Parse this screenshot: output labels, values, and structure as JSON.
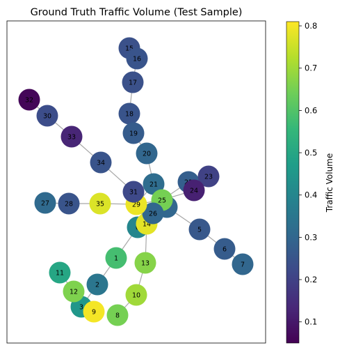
{
  "title": "Ground Truth Traffic Volume (Test Sample)",
  "colorbar": {
    "label": "Traffic Volume",
    "ticks": [
      "0.1",
      "0.2",
      "0.3",
      "0.4",
      "0.5",
      "0.6",
      "0.7",
      "0.8"
    ],
    "tick_values": [
      0.1,
      0.2,
      0.3,
      0.4,
      0.5,
      0.6,
      0.7,
      0.8
    ],
    "vmin": 0.05,
    "vmax": 0.81,
    "colormap": "viridis",
    "colors": [
      "#440154",
      "#482878",
      "#3e4989",
      "#31688e",
      "#26828e",
      "#1f9e89",
      "#35b779",
      "#6ece58",
      "#b5de2b",
      "#fde725"
    ]
  },
  "chart_data": {
    "type": "network-graph",
    "title": "Ground Truth Traffic Volume (Test Sample)",
    "nodes": [
      {
        "id": "0",
        "value": 0.4
      },
      {
        "id": "1",
        "value": 0.58
      },
      {
        "id": "2",
        "value": 0.35
      },
      {
        "id": "3",
        "value": 0.45
      },
      {
        "id": "4",
        "value": 0.3
      },
      {
        "id": "5",
        "value": 0.26
      },
      {
        "id": "6",
        "value": 0.27
      },
      {
        "id": "7",
        "value": 0.3
      },
      {
        "id": "8",
        "value": 0.65
      },
      {
        "id": "9",
        "value": 0.8
      },
      {
        "id": "10",
        "value": 0.7
      },
      {
        "id": "11",
        "value": 0.5
      },
      {
        "id": "12",
        "value": 0.66
      },
      {
        "id": "13",
        "value": 0.67
      },
      {
        "id": "14",
        "value": 0.78
      },
      {
        "id": "15",
        "value": 0.24
      },
      {
        "id": "16",
        "value": 0.25
      },
      {
        "id": "17",
        "value": 0.24
      },
      {
        "id": "18",
        "value": 0.25
      },
      {
        "id": "19",
        "value": 0.27
      },
      {
        "id": "20",
        "value": 0.3
      },
      {
        "id": "21",
        "value": 0.32
      },
      {
        "id": "22",
        "value": 0.28
      },
      {
        "id": "23",
        "value": 0.2
      },
      {
        "id": "24",
        "value": 0.12
      },
      {
        "id": "25",
        "value": 0.65
      },
      {
        "id": "26",
        "value": 0.3
      },
      {
        "id": "27",
        "value": 0.31
      },
      {
        "id": "28",
        "value": 0.25
      },
      {
        "id": "29",
        "value": 0.79
      },
      {
        "id": "30",
        "value": 0.23
      },
      {
        "id": "31",
        "value": 0.22
      },
      {
        "id": "32",
        "value": 0.06
      },
      {
        "id": "33",
        "value": 0.13
      },
      {
        "id": "34",
        "value": 0.25
      },
      {
        "id": "35",
        "value": 0.77
      }
    ],
    "edges": [
      [
        "15",
        "16"
      ],
      [
        "16",
        "17"
      ],
      [
        "17",
        "18"
      ],
      [
        "18",
        "19"
      ],
      [
        "19",
        "20"
      ],
      [
        "20",
        "21"
      ],
      [
        "21",
        "29"
      ],
      [
        "32",
        "30"
      ],
      [
        "30",
        "33"
      ],
      [
        "33",
        "34"
      ],
      [
        "34",
        "31"
      ],
      [
        "31",
        "29"
      ],
      [
        "27",
        "28"
      ],
      [
        "28",
        "35"
      ],
      [
        "35",
        "29"
      ],
      [
        "29",
        "25"
      ],
      [
        "25",
        "22"
      ],
      [
        "25",
        "24"
      ],
      [
        "22",
        "23"
      ],
      [
        "25",
        "4"
      ],
      [
        "4",
        "5"
      ],
      [
        "5",
        "6"
      ],
      [
        "6",
        "7"
      ],
      [
        "29",
        "14"
      ],
      [
        "14",
        "26"
      ],
      [
        "14",
        "0"
      ],
      [
        "0",
        "1"
      ],
      [
        "1",
        "2"
      ],
      [
        "2",
        "3"
      ],
      [
        "3",
        "9"
      ],
      [
        "3",
        "12"
      ],
      [
        "12",
        "11"
      ],
      [
        "14",
        "13"
      ],
      [
        "13",
        "10"
      ],
      [
        "10",
        "8"
      ]
    ]
  }
}
